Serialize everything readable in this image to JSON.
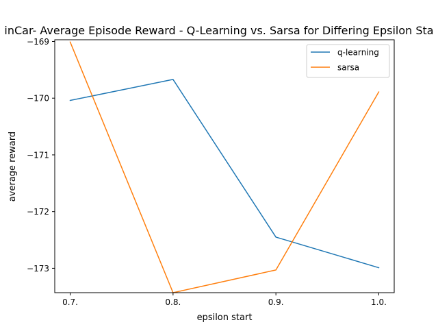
{
  "chart_data": {
    "type": "line",
    "title": "inCar- Average Episode Reward - Q-Learning vs. Sarsa for Differing Epsilon Sta",
    "xlabel": "epsilon start",
    "ylabel": "average reward",
    "x": [
      0.7,
      0.8,
      0.9,
      1.0
    ],
    "x_tick_labels": [
      "0.7.",
      "0.8.",
      "0.9.",
      "1.0."
    ],
    "y_ticks": [
      -169,
      -170,
      -171,
      -172,
      -173
    ],
    "y_tick_labels": [
      "−169",
      "−170",
      "−171",
      "−172",
      "−173"
    ],
    "ylim": [
      -173.43,
      -168.97
    ],
    "xlim": [
      0.685,
      1.015
    ],
    "grid": false,
    "legend_position": "top-right",
    "series": [
      {
        "name": "q-learning",
        "color": "#1f77b4",
        "values": [
          -170.04,
          -169.67,
          -172.45,
          -172.99
        ]
      },
      {
        "name": "sarsa",
        "color": "#ff7f0e",
        "values": [
          -169.01,
          -173.43,
          -173.03,
          -169.89
        ]
      }
    ]
  }
}
